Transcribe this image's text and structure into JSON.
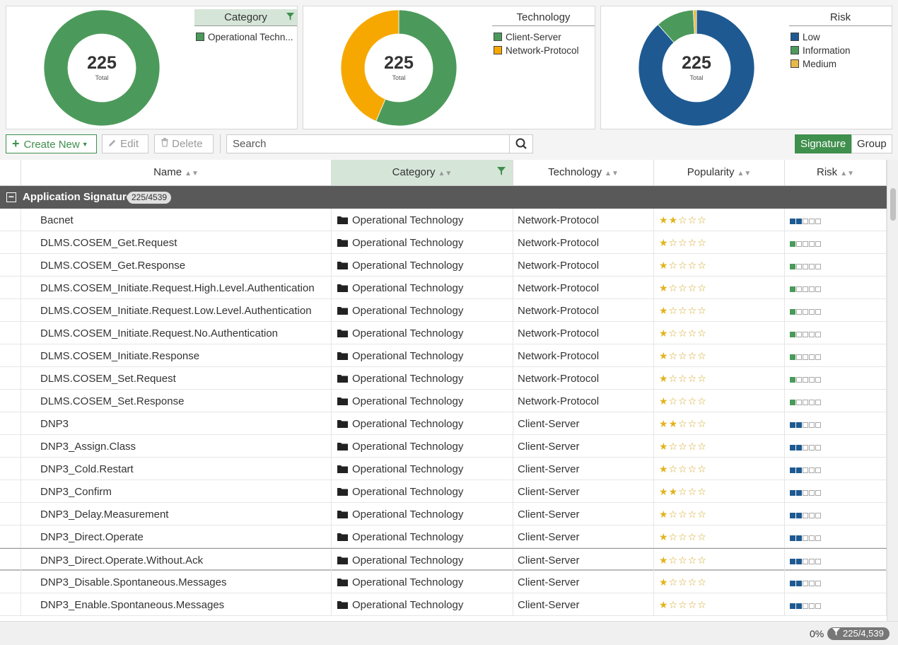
{
  "widgets": [
    {
      "title": "Category",
      "total": "225",
      "total_label": "Total",
      "filtered": true,
      "slices": [
        {
          "label": "Operational Techn...",
          "color": "#4c9a5b",
          "value": 225
        }
      ]
    },
    {
      "title": "Technology",
      "total": "225",
      "total_label": "Total",
      "filtered": false,
      "slices": [
        {
          "label": "Client-Server",
          "color": "#4c9a5b",
          "value": 127
        },
        {
          "label": "Network-Protocol",
          "color": "#f6a800",
          "value": 98
        }
      ]
    },
    {
      "title": "Risk",
      "total": "225",
      "total_label": "Total",
      "filtered": false,
      "slices": [
        {
          "label": "Low",
          "color": "#1e5a91",
          "value": 199
        },
        {
          "label": "Information",
          "color": "#4c9a5b",
          "value": 24
        },
        {
          "label": "Medium",
          "color": "#e8b84a",
          "value": 2
        }
      ]
    }
  ],
  "toolbar": {
    "create_label": "Create New",
    "edit_label": "Edit",
    "delete_label": "Delete",
    "search_placeholder": "Search",
    "toggle_signature": "Signature",
    "toggle_group": "Group"
  },
  "columns": {
    "name": "Name",
    "category": "Category",
    "technology": "Technology",
    "popularity": "Popularity",
    "risk": "Risk"
  },
  "group": {
    "title": "Application Signature",
    "count": "225/4539"
  },
  "rows": [
    {
      "name": "Bacnet",
      "category": "Operational Technology",
      "technology": "Network-Protocol",
      "popularity": 2,
      "risk_level": 2,
      "risk_type": "low"
    },
    {
      "name": "DLMS.COSEM_Get.Request",
      "category": "Operational Technology",
      "technology": "Network-Protocol",
      "popularity": 1,
      "risk_level": 1,
      "risk_type": "info"
    },
    {
      "name": "DLMS.COSEM_Get.Response",
      "category": "Operational Technology",
      "technology": "Network-Protocol",
      "popularity": 1,
      "risk_level": 1,
      "risk_type": "info"
    },
    {
      "name": "DLMS.COSEM_Initiate.Request.High.Level.Authentication",
      "category": "Operational Technology",
      "technology": "Network-Protocol",
      "popularity": 1,
      "risk_level": 1,
      "risk_type": "info"
    },
    {
      "name": "DLMS.COSEM_Initiate.Request.Low.Level.Authentication",
      "category": "Operational Technology",
      "technology": "Network-Protocol",
      "popularity": 1,
      "risk_level": 1,
      "risk_type": "info"
    },
    {
      "name": "DLMS.COSEM_Initiate.Request.No.Authentication",
      "category": "Operational Technology",
      "technology": "Network-Protocol",
      "popularity": 1,
      "risk_level": 1,
      "risk_type": "info"
    },
    {
      "name": "DLMS.COSEM_Initiate.Response",
      "category": "Operational Technology",
      "technology": "Network-Protocol",
      "popularity": 1,
      "risk_level": 1,
      "risk_type": "info"
    },
    {
      "name": "DLMS.COSEM_Set.Request",
      "category": "Operational Technology",
      "technology": "Network-Protocol",
      "popularity": 1,
      "risk_level": 1,
      "risk_type": "info"
    },
    {
      "name": "DLMS.COSEM_Set.Response",
      "category": "Operational Technology",
      "technology": "Network-Protocol",
      "popularity": 1,
      "risk_level": 1,
      "risk_type": "info"
    },
    {
      "name": "DNP3",
      "category": "Operational Technology",
      "technology": "Client-Server",
      "popularity": 2,
      "risk_level": 2,
      "risk_type": "low"
    },
    {
      "name": "DNP3_Assign.Class",
      "category": "Operational Technology",
      "technology": "Client-Server",
      "popularity": 1,
      "risk_level": 2,
      "risk_type": "low"
    },
    {
      "name": "DNP3_Cold.Restart",
      "category": "Operational Technology",
      "technology": "Client-Server",
      "popularity": 1,
      "risk_level": 2,
      "risk_type": "low"
    },
    {
      "name": "DNP3_Confirm",
      "category": "Operational Technology",
      "technology": "Client-Server",
      "popularity": 2,
      "risk_level": 2,
      "risk_type": "low"
    },
    {
      "name": "DNP3_Delay.Measurement",
      "category": "Operational Technology",
      "technology": "Client-Server",
      "popularity": 1,
      "risk_level": 2,
      "risk_type": "low"
    },
    {
      "name": "DNP3_Direct.Operate",
      "category": "Operational Technology",
      "technology": "Client-Server",
      "popularity": 1,
      "risk_level": 2,
      "risk_type": "low"
    },
    {
      "name": "DNP3_Direct.Operate.Without.Ack",
      "category": "Operational Technology",
      "technology": "Client-Server",
      "popularity": 1,
      "risk_level": 2,
      "risk_type": "low",
      "selected": true
    },
    {
      "name": "DNP3_Disable.Spontaneous.Messages",
      "category": "Operational Technology",
      "technology": "Client-Server",
      "popularity": 1,
      "risk_level": 2,
      "risk_type": "low"
    },
    {
      "name": "DNP3_Enable.Spontaneous.Messages",
      "category": "Operational Technology",
      "technology": "Client-Server",
      "popularity": 1,
      "risk_level": 2,
      "risk_type": "low"
    }
  ],
  "footer": {
    "percent": "0%",
    "count": "225/4,539"
  }
}
